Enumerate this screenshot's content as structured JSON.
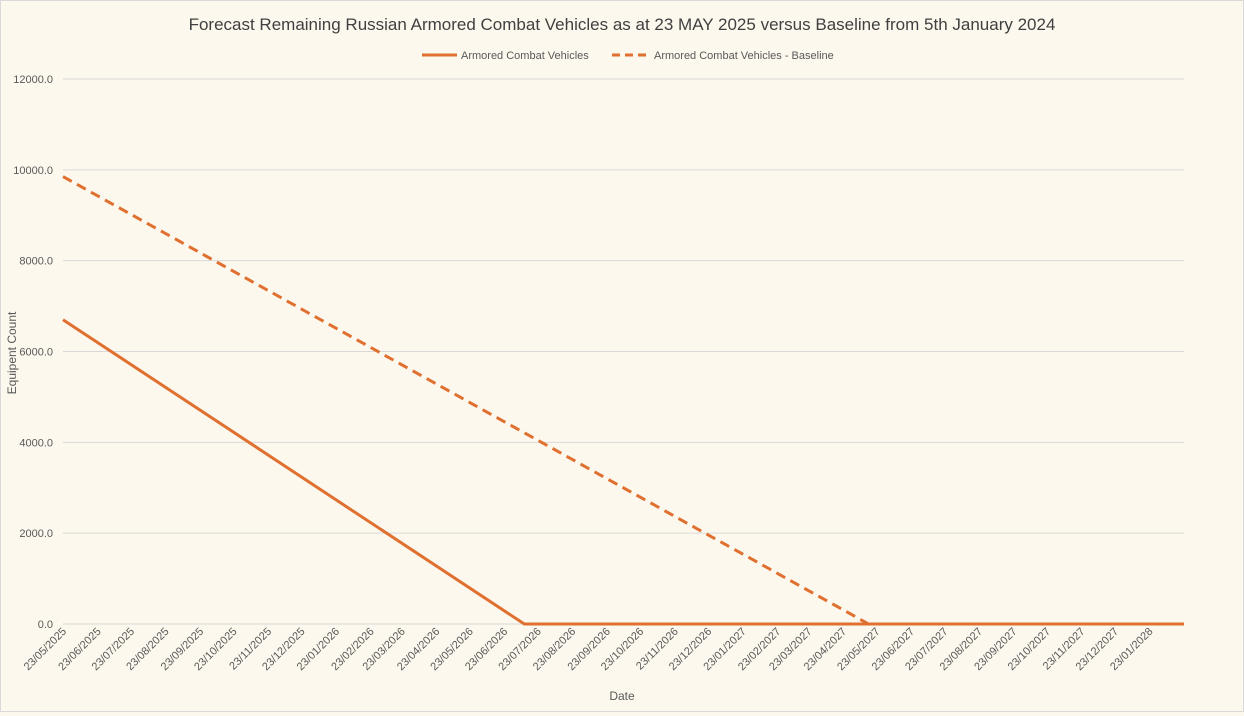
{
  "chart_data": {
    "type": "line",
    "title": "Forecast Remaining Russian Armored Combat Vehicles as at 23 MAY 2025 versus Baseline from 5th January 2024",
    "xlabel": "Date",
    "ylabel": "Equipent Count",
    "ylim": [
      0,
      12000
    ],
    "yticks": [
      "0.0",
      "2000.0",
      "4000.0",
      "6000.0",
      "8000.0",
      "10000.0",
      "12000.0"
    ],
    "x_tick_labels": [
      "23/05/2025",
      "23/06/2025",
      "23/07/2025",
      "23/08/2025",
      "23/09/2025",
      "23/10/2025",
      "23/11/2025",
      "23/12/2025",
      "23/01/2026",
      "23/02/2026",
      "23/03/2026",
      "23/04/2026",
      "23/05/2026",
      "23/06/2026",
      "23/07/2026",
      "23/08/2026",
      "23/09/2026",
      "23/10/2026",
      "23/11/2026",
      "23/12/2026",
      "23/01/2027",
      "23/02/2027",
      "23/03/2027",
      "23/04/2027",
      "23/05/2027",
      "23/06/2027",
      "23/07/2027",
      "23/08/2027",
      "23/09/2027",
      "23/10/2027",
      "23/11/2027",
      "23/12/2027",
      "23/01/2028"
    ],
    "x_range": [
      "23/05/2025",
      "23/02/2028"
    ],
    "grid": true,
    "legend_position": "top",
    "series": [
      {
        "name": "Armored Combat Vehicles",
        "style": "solid",
        "color": "#e07030",
        "points": [
          {
            "x": "23/05/2025",
            "y": 6700
          },
          {
            "x": "11/07/2026",
            "y": 0
          },
          {
            "x": "23/02/2028",
            "y": 0
          }
        ]
      },
      {
        "name": "Armored Combat Vehicles - Baseline",
        "style": "dashed",
        "color": "#e07030",
        "points": [
          {
            "x": "23/05/2025",
            "y": 9850
          },
          {
            "x": "16/05/2027",
            "y": 0
          }
        ]
      }
    ]
  }
}
